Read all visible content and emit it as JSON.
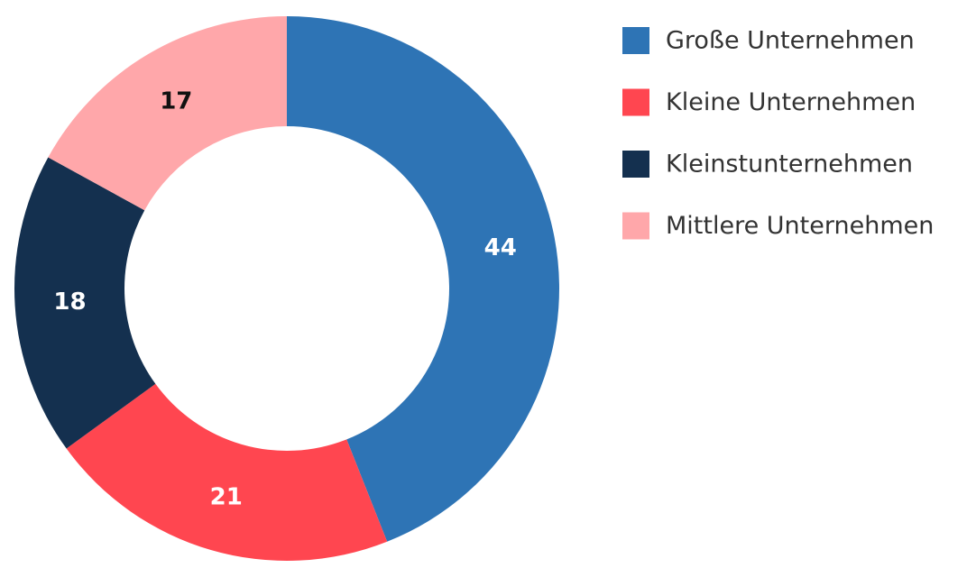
{
  "chart_data": {
    "type": "pie",
    "donut": true,
    "categories": [
      "Große Unternehmen",
      "Kleine Unternehmen",
      "Kleinstunternehmen",
      "Mittlere Unternehmen"
    ],
    "values": [
      44,
      21,
      18,
      17
    ],
    "colors": [
      "#2e74b5",
      "#ff4650",
      "#14304f",
      "#ffa7aa"
    ]
  }
}
